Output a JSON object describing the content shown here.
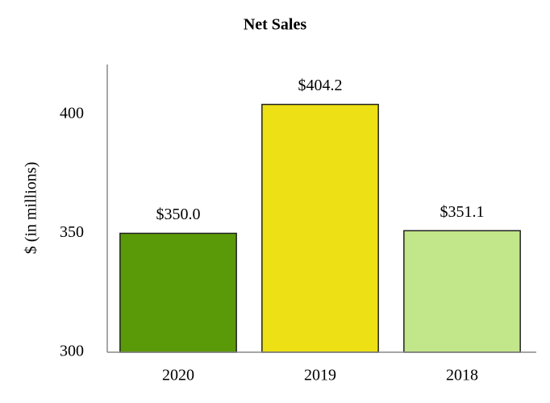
{
  "chart_data": {
    "type": "bar",
    "title": "Net Sales",
    "y_label": "$ (in millions)",
    "categories": [
      "2020",
      "2019",
      "2018"
    ],
    "values": [
      350.0,
      404.2,
      351.1
    ],
    "value_labels": [
      "$350.0",
      "$404.2",
      "$351.1"
    ],
    "colors": [
      "#5a9a08",
      "#ede015",
      "#c2e68a"
    ],
    "ylim": [
      300,
      421
    ],
    "yticks": [
      300,
      350,
      400
    ],
    "grid": false
  }
}
